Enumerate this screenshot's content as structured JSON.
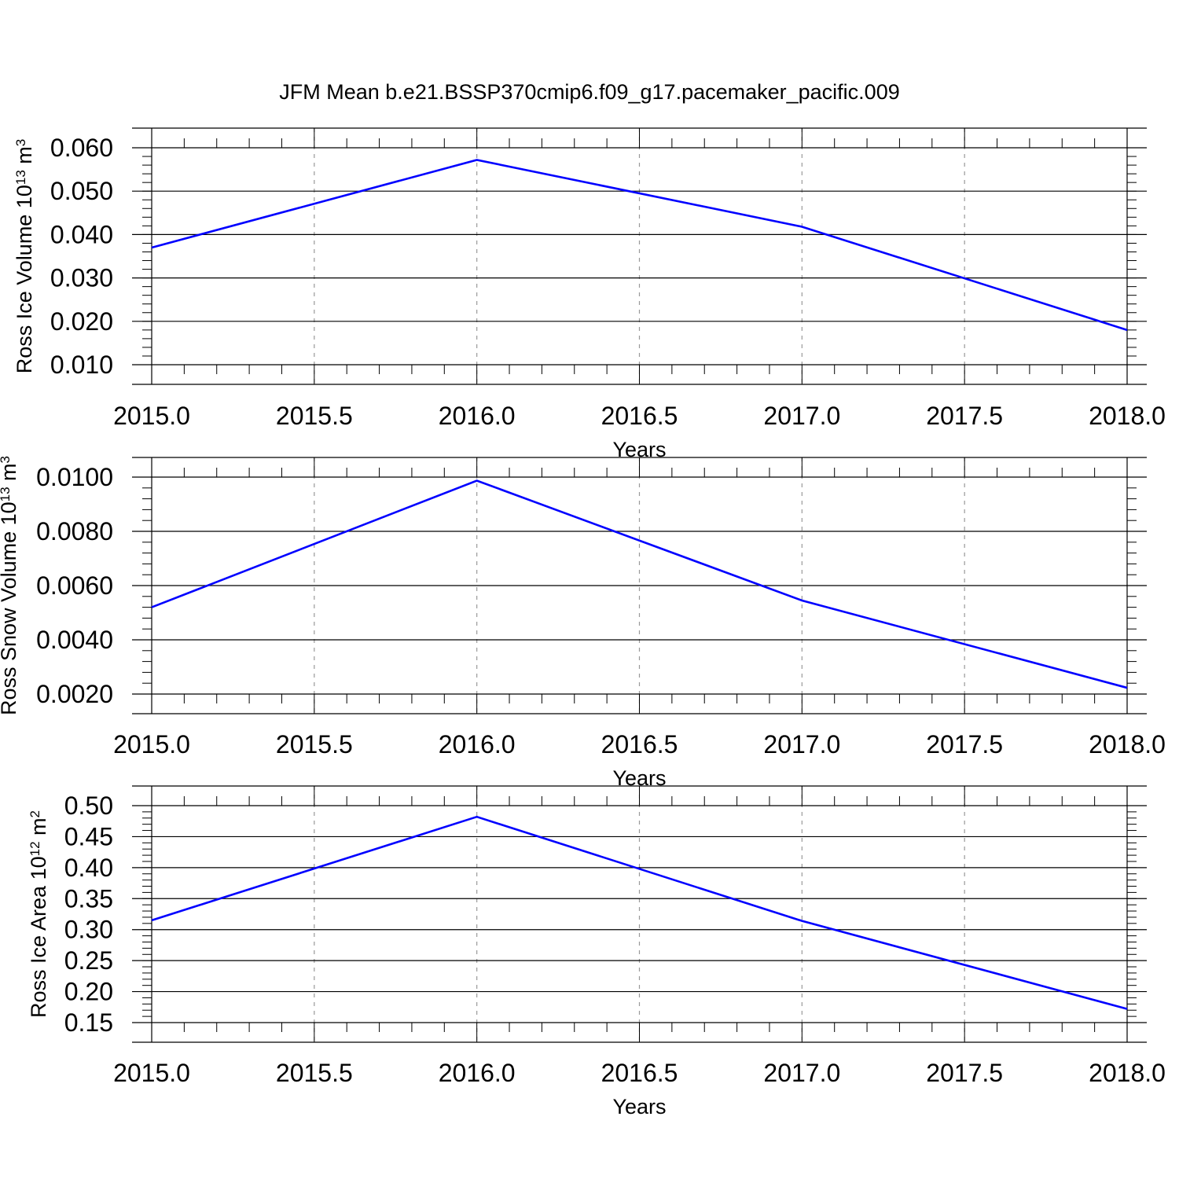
{
  "figure": {
    "title": "JFM Mean b.e21.BSSP370cmip6.f09_g17.pacemaker_pacific.009",
    "line_color": "#0000ff",
    "grid_color": "#999999",
    "axis_color": "#000000"
  },
  "chart_data": [
    {
      "type": "line",
      "title": "",
      "xlabel": "Years",
      "ylabel": {
        "base": "Ross Ice Volume 10",
        "sup": "13",
        "unit": " m",
        "unit_sup": "3"
      },
      "xlim": [
        2015.0,
        2018.0
      ],
      "ylim": [
        0.01,
        0.06
      ],
      "xticks": [
        2015.0,
        2015.5,
        2016.0,
        2016.5,
        2017.0,
        2017.5,
        2018.0
      ],
      "xtick_labels": [
        "2015.0",
        "2015.5",
        "2016.0",
        "2016.5",
        "2017.0",
        "2017.5",
        "2018.0"
      ],
      "yticks": [
        0.01,
        0.02,
        0.03,
        0.04,
        0.05,
        0.06
      ],
      "ytick_labels": [
        "0.010",
        "0.020",
        "0.030",
        "0.040",
        "0.050",
        "0.060"
      ],
      "grid": "vertical dashed",
      "series": [
        {
          "x": [
            2015,
            2016,
            2017,
            2018
          ],
          "values": [
            0.037,
            0.0572,
            0.0418,
            0.018
          ]
        }
      ]
    },
    {
      "type": "line",
      "title": "",
      "xlabel": "Years",
      "ylabel": {
        "base": "Ross Snow Volume 10",
        "sup": "13",
        "unit": " m",
        "unit_sup": "3"
      },
      "xlim": [
        2015.0,
        2018.0
      ],
      "ylim": [
        0.002,
        0.01
      ],
      "xticks": [
        2015.0,
        2015.5,
        2016.0,
        2016.5,
        2017.0,
        2017.5,
        2018.0
      ],
      "xtick_labels": [
        "2015.0",
        "2015.5",
        "2016.0",
        "2016.5",
        "2017.0",
        "2017.5",
        "2018.0"
      ],
      "yticks": [
        0.002,
        0.004,
        0.006,
        0.008,
        0.01
      ],
      "ytick_labels": [
        "0.0020",
        "0.0040",
        "0.0060",
        "0.0080",
        "0.0100"
      ],
      "grid": "vertical dashed",
      "series": [
        {
          "x": [
            2015,
            2016,
            2017,
            2018
          ],
          "values": [
            0.0052,
            0.00987,
            0.00545,
            0.00223
          ]
        }
      ]
    },
    {
      "type": "line",
      "title": "",
      "xlabel": "Years",
      "ylabel": {
        "base": "Ross Ice Area 10",
        "sup": "12",
        "unit": " m",
        "unit_sup": "2"
      },
      "xlim": [
        2015.0,
        2018.0
      ],
      "ylim": [
        0.15,
        0.5
      ],
      "xticks": [
        2015.0,
        2015.5,
        2016.0,
        2016.5,
        2017.0,
        2017.5,
        2018.0
      ],
      "xtick_labels": [
        "2015.0",
        "2015.5",
        "2016.0",
        "2016.5",
        "2017.0",
        "2017.5",
        "2018.0"
      ],
      "yticks": [
        0.15,
        0.2,
        0.25,
        0.3,
        0.35,
        0.4,
        0.45,
        0.5
      ],
      "ytick_labels": [
        "0.15",
        "0.20",
        "0.25",
        "0.30",
        "0.35",
        "0.40",
        "0.45",
        "0.50"
      ],
      "grid": "vertical dashed",
      "series": [
        {
          "x": [
            2015,
            2016,
            2017,
            2018
          ],
          "values": [
            0.315,
            0.482,
            0.314,
            0.172
          ]
        }
      ]
    }
  ]
}
